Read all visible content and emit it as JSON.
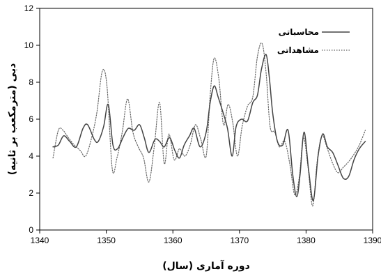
{
  "chart_data": {
    "type": "line",
    "xlabel": "دوره آماری (سال)",
    "ylabel": "دبی (مترمکعب بر ثانیه)",
    "xlim": [
      1340,
      1390
    ],
    "ylim": [
      0,
      12
    ],
    "xticks": [
      1340,
      1350,
      1360,
      1370,
      1380,
      1390
    ],
    "yticks": [
      0,
      2,
      4,
      6,
      8,
      10,
      12
    ],
    "legend_position": "top-right",
    "series": [
      {
        "name": "محاسباتی",
        "style": "solid",
        "color": "#444444",
        "x": [
          1342,
          1342.8,
          1343.6,
          1344.5,
          1345.5,
          1346.5,
          1347.2,
          1348.2,
          1348.8,
          1349.6,
          1350.3,
          1351,
          1351.7,
          1352.5,
          1353.3,
          1354.2,
          1355,
          1355.7,
          1356.4,
          1357.3,
          1358,
          1358.7,
          1359.5,
          1360.3,
          1361,
          1361.7,
          1362.5,
          1363.2,
          1364.1,
          1365,
          1365.6,
          1366.2,
          1366.8,
          1367.5,
          1368.2,
          1368.9,
          1369.5,
          1370.3,
          1371.2,
          1372,
          1372.7,
          1373.3,
          1374,
          1374.5,
          1375,
          1375.7,
          1376.5,
          1377.3,
          1378,
          1378.6,
          1379.1,
          1379.7,
          1380.4,
          1381.1,
          1381.8,
          1382.5,
          1383.2,
          1384,
          1384.8,
          1385.6,
          1386.4,
          1387.2,
          1388,
          1388.9
        ],
        "y": [
          4.5,
          4.6,
          5.1,
          4.8,
          4.5,
          5.5,
          5.7,
          4.9,
          4.8,
          5.6,
          6.8,
          4.6,
          4.4,
          5.0,
          5.5,
          5.4,
          5.7,
          5.0,
          4.2,
          4.9,
          4.8,
          4.5,
          5.0,
          4.3,
          3.9,
          4.6,
          5.1,
          5.5,
          4.5,
          5.3,
          6.9,
          7.8,
          7.2,
          6.4,
          5.5,
          4.0,
          5.6,
          6.0,
          5.9,
          6.9,
          7.3,
          8.7,
          9.5,
          8.2,
          6.3,
          4.8,
          4.6,
          5.4,
          3.0,
          1.8,
          3.0,
          5.3,
          3.2,
          1.6,
          4.0,
          5.2,
          4.5,
          4.2,
          3.5,
          2.8,
          2.9,
          3.8,
          4.4,
          4.8
        ]
      },
      {
        "name": "مشاهداتی",
        "style": "dotted",
        "color": "#666666",
        "x": [
          1342,
          1342.8,
          1343.5,
          1344.3,
          1345.2,
          1346.1,
          1346.9,
          1347.8,
          1348.6,
          1349.4,
          1350.1,
          1350.9,
          1351.6,
          1352.4,
          1353.2,
          1354,
          1354.8,
          1355.6,
          1356.4,
          1357.2,
          1358,
          1358.7,
          1359.4,
          1360.2,
          1361,
          1361.8,
          1362.6,
          1363.4,
          1364.2,
          1365,
          1365.6,
          1366.2,
          1366.9,
          1367.6,
          1368.3,
          1369,
          1369.7,
          1370.4,
          1371.2,
          1372,
          1372.7,
          1373.4,
          1374,
          1374.6,
          1375.3,
          1376,
          1376.8,
          1377.6,
          1378.3,
          1379,
          1379.6,
          1380.3,
          1381,
          1381.7,
          1382.4,
          1383.2,
          1384,
          1384.8,
          1385.6,
          1386.4,
          1387.2,
          1388,
          1388.9
        ],
        "y": [
          3.9,
          5.4,
          5.4,
          5.0,
          4.6,
          4.3,
          4.0,
          5.0,
          6.4,
          8.6,
          7.8,
          3.3,
          3.9,
          5.3,
          7.1,
          5.3,
          4.5,
          3.9,
          2.6,
          4.5,
          6.9,
          3.6,
          5.2,
          3.8,
          4.4,
          4.0,
          4.6,
          5.7,
          4.9,
          4.0,
          7.3,
          9.3,
          8.2,
          5.7,
          6.8,
          5.8,
          4.0,
          5.6,
          6.7,
          7.2,
          9.4,
          10.1,
          8.5,
          5.6,
          5.3,
          4.5,
          4.8,
          3.5,
          1.9,
          2.9,
          5.0,
          3.4,
          1.3,
          3.8,
          5.1,
          4.4,
          3.6,
          3.1,
          3.4,
          3.7,
          4.1,
          4.6,
          5.4
        ]
      }
    ]
  }
}
